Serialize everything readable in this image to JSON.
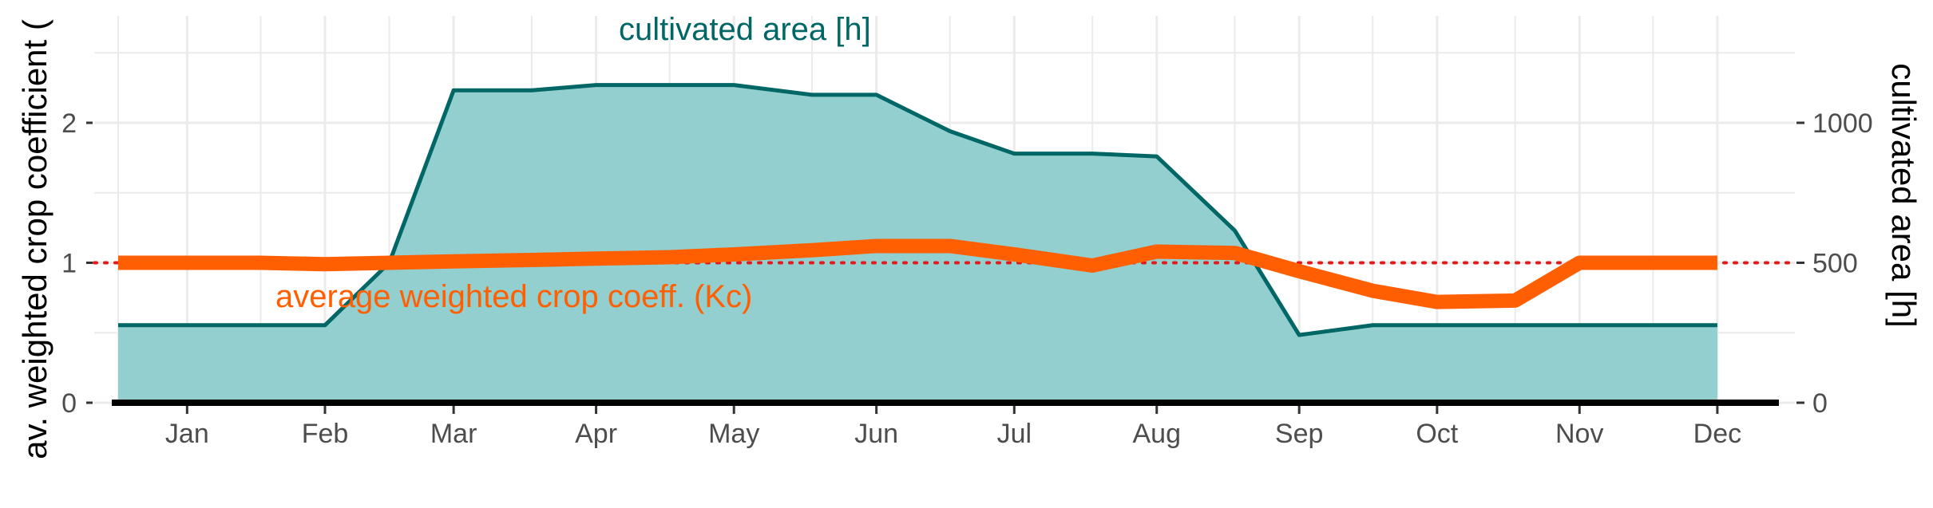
{
  "chart_data": {
    "type": "area",
    "x_tick_labels": [
      "Jan",
      "Feb",
      "Mar",
      "Apr",
      "May",
      "Jun",
      "Jul",
      "Aug",
      "Sep",
      "Oct",
      "Nov",
      "Dec"
    ],
    "y_left": {
      "label": "av. weighted crop coefficient (",
      "ticks": [
        "0",
        "1",
        "2"
      ],
      "range": [
        0,
        2.5
      ]
    },
    "y_right": {
      "label": "cultivated area [h]",
      "ticks": [
        "0",
        "500",
        "1000"
      ],
      "range": [
        0,
        1250
      ]
    },
    "reference_line": {
      "y": 1,
      "color": "#e31a1c",
      "style": "dotted"
    },
    "grid": true,
    "series": [
      {
        "name": "cultivated area [h]",
        "axis": "right",
        "style": "area",
        "color": "#006666",
        "fill": "#93cfcf",
        "x": [
          1,
          16,
          32,
          46,
          60,
          74,
          91,
          105,
          121,
          135,
          152,
          166,
          182,
          196,
          213,
          227,
          244,
          258,
          274,
          288,
          305,
          319,
          335,
          349
        ],
        "y": [
          277,
          277,
          277,
          277,
          500,
          1116,
          1116,
          1135,
          1135,
          1135,
          1100,
          1100,
          970,
          890,
          890,
          880,
          615,
          242,
          277,
          277,
          277,
          277,
          277,
          277
        ]
      },
      {
        "name": "average weighted crop coeff. (Kc)",
        "axis": "left",
        "style": "line",
        "color": "#ff5f00",
        "x": [
          1,
          16,
          32,
          46,
          60,
          74,
          91,
          105,
          121,
          135,
          152,
          166,
          182,
          196,
          213,
          227,
          244,
          258,
          274,
          288,
          305,
          319,
          335,
          349
        ],
        "y": [
          1.0,
          1.0,
          1.0,
          0.99,
          1.0,
          1.01,
          1.02,
          1.03,
          1.04,
          1.06,
          1.09,
          1.12,
          1.12,
          1.06,
          0.98,
          1.08,
          1.07,
          0.94,
          0.8,
          0.72,
          0.73,
          1.0,
          1.0,
          1.0
        ]
      }
    ],
    "annotations": {
      "area_label": "cultivated area [h]",
      "kc_label": "average weighted crop coeff. (Kc)"
    },
    "colors": {
      "area_line": "#006666",
      "area_fill": "#93cfcf",
      "kc_line": "#ff5f00",
      "reference": "#e31a1c",
      "grid": "#ebebeb",
      "baseline": "#000000"
    }
  }
}
